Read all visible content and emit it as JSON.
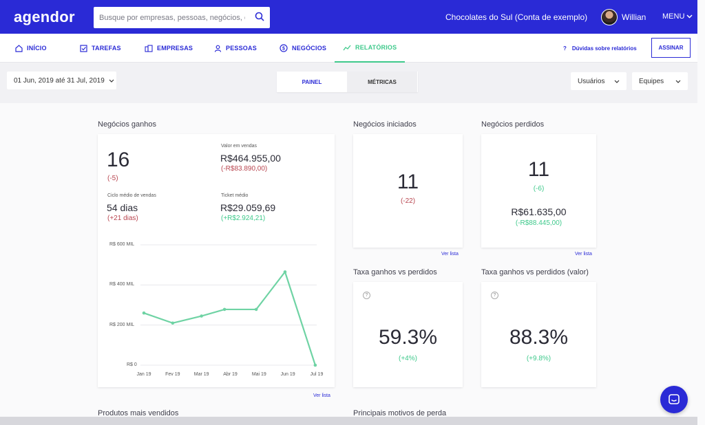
{
  "header": {
    "logo": "agendor",
    "search_placeholder": "Busque por empresas, pessoas, negócios, etc...",
    "account": "Chocolates do Sul (Conta de exemplo)",
    "user": "Willian",
    "menu": "MENU"
  },
  "nav": {
    "items": [
      {
        "label": "INÍCIO",
        "icon": "home-icon"
      },
      {
        "label": "TAREFAS",
        "icon": "checkbox-icon"
      },
      {
        "label": "EMPRESAS",
        "icon": "building-icon"
      },
      {
        "label": "PESSOAS",
        "icon": "person-icon"
      },
      {
        "label": "NEGÓCIOS",
        "icon": "dollar-icon"
      },
      {
        "label": "RELATÓRIOS",
        "icon": "chart-icon"
      }
    ],
    "help": "Dúvidas sobre relatórios",
    "assinar": "ASSINAR"
  },
  "filters": {
    "date_range": "01 Jun, 2019 até 31 Jul, 2019",
    "tabs": [
      "PAINEL",
      "MÉTRICAS"
    ],
    "active_tab": "PAINEL",
    "users_select": "Usuários",
    "teams_select": "Equipes"
  },
  "won": {
    "title": "Negócios ganhos",
    "count": "16",
    "count_delta": "(-5)",
    "sales_value_label": "Valor em vendas",
    "sales_value": "R$464.955,00",
    "sales_value_delta": "(-R$83.890,00)",
    "cycle_label": "Ciclo médio de vendas",
    "cycle": "54 dias",
    "cycle_delta": "(+21 dias)",
    "ticket_label": "Ticket médio",
    "ticket": "R$29.059,69",
    "ticket_delta": "(+R$2.924,21)",
    "link": "Ver lista"
  },
  "chart_data": {
    "type": "line",
    "categories": [
      "Jan 19",
      "Fev 19",
      "Mar 19",
      "Abr 19",
      "Mai 19",
      "Jun 19",
      "Jul 19"
    ],
    "x": [
      0,
      1,
      2,
      2.8,
      3.9,
      4.9,
      5.95
    ],
    "values": [
      260000,
      210000,
      245000,
      278000,
      278000,
      465000,
      0
    ],
    "yticks": [
      "R$ 0",
      "R$ 200 MIL",
      "R$ 400 MIL",
      "R$ 600 MIL"
    ],
    "ylim": [
      0,
      600000
    ],
    "color": "#6fd3a4",
    "grid": true
  },
  "started": {
    "title": "Negócios iniciados",
    "count": "11",
    "delta": "(-22)",
    "link": "Ver lista"
  },
  "lost": {
    "title": "Negócios perdidos",
    "count": "11",
    "delta": "(-6)",
    "value": "R$61.635,00",
    "value_delta": "(-R$88.445,00)",
    "link": "Ver lista"
  },
  "rate": {
    "title": "Taxa ganhos vs perdidos",
    "value": "59.3%",
    "delta": "(+4%)"
  },
  "rate_value": {
    "title": "Taxa ganhos vs perdidos (valor)",
    "value": "88.3%",
    "delta": "(+9.8%)"
  },
  "bottom": {
    "products": "Produtos mais vendidos",
    "reasons": "Principais motivos de perda"
  },
  "colors": {
    "brand": "#2a2ad6",
    "green": "#3ec98b",
    "red": "#b8454f"
  }
}
